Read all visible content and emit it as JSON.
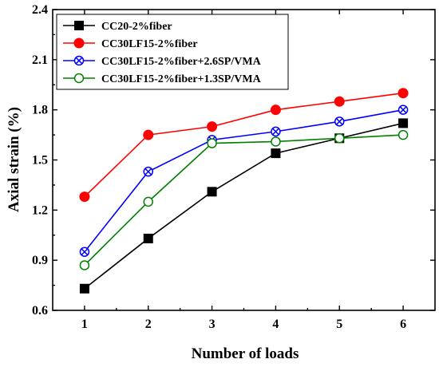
{
  "chart_data": {
    "type": "line",
    "xlabel": "Number of loads",
    "ylabel": "Axial strain (%)",
    "x": [
      1,
      2,
      3,
      4,
      5,
      6
    ],
    "xlim": [
      0.5,
      6.5
    ],
    "ylim": [
      0.6,
      2.4
    ],
    "xticks": [
      "1",
      "2",
      "3",
      "4",
      "5",
      "6"
    ],
    "yticks": [
      "0.6",
      "0.9",
      "1.2",
      "1.5",
      "1.8",
      "2.1",
      "2.4"
    ],
    "grid": false,
    "legend_position": "top-left",
    "series": [
      {
        "name": "CC20-2%fiber",
        "color": "#000000",
        "marker": "square-filled",
        "values": [
          0.73,
          1.03,
          1.31,
          1.54,
          1.63,
          1.72
        ]
      },
      {
        "name": "CC30LF15-2%fiber",
        "color": "#ff0000",
        "marker": "circle-filled",
        "values": [
          1.28,
          1.65,
          1.7,
          1.8,
          1.85,
          1.9
        ]
      },
      {
        "name": "CC30LF15-2%fiber+2.6SP/VMA",
        "color": "#0000ff",
        "marker": "circle-x",
        "values": [
          0.95,
          1.43,
          1.62,
          1.67,
          1.73,
          1.8
        ]
      },
      {
        "name": "CC30LF15-2%fiber+1.3SP/VMA",
        "color": "#008000",
        "marker": "circle-open",
        "values": [
          0.87,
          1.25,
          1.6,
          1.61,
          1.63,
          1.65
        ]
      }
    ]
  }
}
